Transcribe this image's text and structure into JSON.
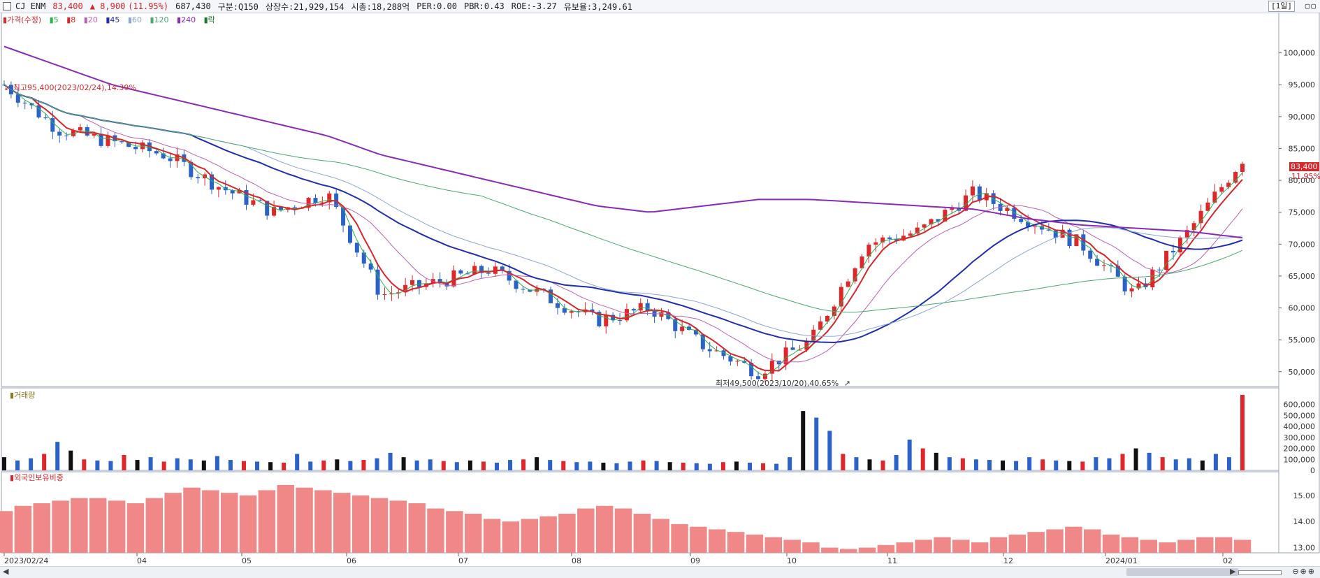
{
  "header": {
    "name": "CJ ENM",
    "price": "83,400",
    "change": "▲ 8,900",
    "change_pct": "(11.95%)",
    "volume": "687,430",
    "market": "구분:Q150",
    "shares": "상장수:21,929,154",
    "cap": "시총:18,288억",
    "per": "PER:0.00",
    "pbr": "PBR:0.43",
    "roe": "ROE:-3.27",
    "float": "유보율:3,249.61",
    "period": "[1일]"
  },
  "legend": {
    "price_label": "가격(수정)",
    "ma": [
      "5",
      "8",
      "20",
      "45",
      "60",
      "120",
      "240"
    ],
    "rak": "락"
  },
  "annotations": {
    "high": "최고95,400(2023/02/24),14.39%",
    "low": "최저49,500(2023/10/20),40.65%"
  },
  "price_tag": {
    "value": "83,400",
    "pct": "11.95%"
  },
  "volume_label": "거래량",
  "foreign_label": "외국인보유비중",
  "x_ticks": [
    "2023/02/24",
    "04",
    "05",
    "06",
    "07",
    "08",
    "09",
    "10",
    "11",
    "12",
    "2024/01",
    "02"
  ],
  "colors": {
    "up": "#e0262b",
    "down": "#2a62c9",
    "ma5": "#2bb24c",
    "ma8": "#d9262b",
    "ma20": "#c060b0",
    "ma45": "#1f2fb0",
    "ma60": "#8aa6d6",
    "ma120": "#4aa870",
    "ma240": "#8a2bb8",
    "foreign": "#f08888"
  },
  "chart_data": [
    {
      "type": "line",
      "name": "price",
      "x": [
        "2023/02/24",
        "2023/03/15",
        "2023/04/01",
        "2023/04/20",
        "2023/05/10",
        "2023/05/31",
        "2023/06/20",
        "2023/07/05",
        "2023/07/20",
        "2023/08/05",
        "2023/08/20",
        "2023/09/05",
        "2023/09/25",
        "2023/10/10",
        "2023/10/20",
        "2023/11/01",
        "2023/11/10",
        "2023/11/20",
        "2023/11/30",
        "2023/12/15",
        "2024/01/05",
        "2024/01/20",
        "2024/02/01",
        "2024/02/14"
      ],
      "y": [
        95000,
        88000,
        86000,
        84000,
        79000,
        75000,
        78000,
        62000,
        64000,
        66000,
        62000,
        58000,
        60000,
        54000,
        50000,
        55000,
        70000,
        72000,
        78000,
        74000,
        70000,
        62000,
        72000,
        83400
      ],
      "ma240": [
        101000,
        98000,
        95000,
        93000,
        91000,
        89000,
        87000,
        84000,
        82000,
        80000,
        78000,
        76000,
        75000,
        76000,
        77000,
        77000,
        76500,
        76000,
        75500,
        74000,
        73000,
        72500,
        72000,
        71000
      ],
      "ylim": [
        48000,
        105000
      ],
      "yticks": [
        50000,
        55000,
        60000,
        65000,
        70000,
        75000,
        80000,
        85000,
        90000,
        95000,
        100000
      ]
    },
    {
      "type": "bar",
      "name": "거래량",
      "ylim": [
        0,
        700000
      ],
      "yticks": [
        0,
        100000,
        200000,
        300000,
        400000,
        500000,
        600000
      ],
      "values": [
        120000,
        90000,
        110000,
        150000,
        260000,
        180000,
        100000,
        90000,
        85000,
        140000,
        95000,
        120000,
        80000,
        110000,
        100000,
        90000,
        130000,
        95000,
        85000,
        80000,
        75000,
        70000,
        150000,
        80000,
        90000,
        100000,
        85000,
        95000,
        110000,
        160000,
        120000,
        90000,
        100000,
        85000,
        75000,
        90000,
        80000,
        70000,
        95000,
        100000,
        120000,
        95000,
        85000,
        75000,
        80000,
        70000,
        65000,
        80000,
        90000,
        85000,
        75000,
        70000,
        65000,
        60000,
        75000,
        80000,
        70000,
        65000,
        60000,
        120000,
        540000,
        480000,
        360000,
        150000,
        120000,
        100000,
        90000,
        140000,
        280000,
        200000,
        160000,
        120000,
        110000,
        100000,
        95000,
        90000,
        85000,
        120000,
        100000,
        90000,
        85000,
        80000,
        120000,
        110000,
        150000,
        200000,
        160000,
        120000,
        100000,
        110000,
        90000,
        150000,
        120000,
        687430
      ]
    },
    {
      "type": "bar",
      "name": "외국인보유비중",
      "ylim": [
        12.8,
        15.8
      ],
      "yticks": [
        13.0,
        14.0,
        15.0
      ],
      "values": [
        14.4,
        14.6,
        14.7,
        14.8,
        14.9,
        14.9,
        14.8,
        14.7,
        14.9,
        15.1,
        15.3,
        15.2,
        15.1,
        15.0,
        15.2,
        15.4,
        15.3,
        15.2,
        15.1,
        15.0,
        14.9,
        14.8,
        14.7,
        14.5,
        14.4,
        14.3,
        14.1,
        14.0,
        14.1,
        14.2,
        14.3,
        14.5,
        14.6,
        14.5,
        14.3,
        14.1,
        13.9,
        13.8,
        13.7,
        13.6,
        13.5,
        13.4,
        13.3,
        13.2,
        13.0,
        12.95,
        13.0,
        13.1,
        13.2,
        13.3,
        13.4,
        13.3,
        13.2,
        13.4,
        13.5,
        13.6,
        13.7,
        13.8,
        13.7,
        13.5,
        13.4,
        13.3,
        13.2,
        13.3,
        13.4,
        13.4,
        13.3
      ]
    }
  ]
}
